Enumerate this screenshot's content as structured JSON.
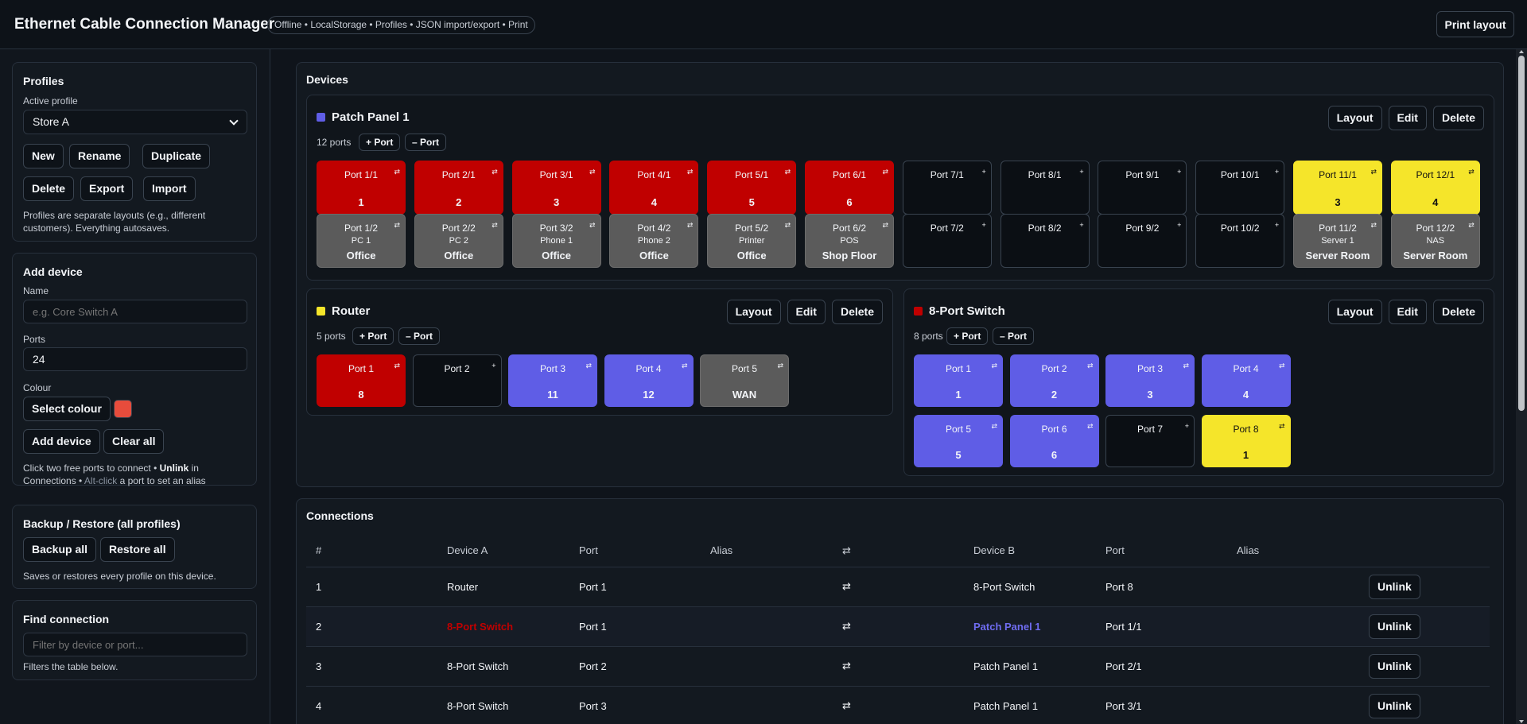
{
  "header": {
    "title": "Ethernet Cable Connection Manager",
    "pill": "Offline • LocalStorage • Profiles • JSON import/export • Print",
    "print_label": "Print layout"
  },
  "profiles": {
    "title": "Profiles",
    "active_label": "Active profile",
    "active_value": "Store A",
    "buttons": [
      "New",
      "Rename",
      "Duplicate",
      "Delete",
      "Export",
      "Import"
    ],
    "note": "Profiles are separate layouts (e.g., different customers). Everything autosaves."
  },
  "add_device": {
    "title": "Add device",
    "name_label": "Name",
    "name_placeholder": "e.g. Core Switch A",
    "ports_label": "Ports",
    "ports_value": "24",
    "colour_label": "Colour",
    "select_colour": "Select colour",
    "swatch_color": "#e74c3c",
    "add_label": "Add device",
    "clear_label": "Clear all",
    "note_1": "Click two free ports to connect • ",
    "note_unlink": "Unlink",
    "note_2": " in Connections • ",
    "note_altclick": "Alt-click",
    "note_3": " a port to set an alias"
  },
  "backup": {
    "title": "Backup / Restore (all profiles)",
    "backup_label": "Backup all",
    "restore_label": "Restore all",
    "note": "Saves or restores every profile on this device."
  },
  "find": {
    "title": "Find connection",
    "placeholder": "Filter by device or port...",
    "note": "Filters the table below."
  },
  "devices_section": {
    "title": "Devices",
    "layout_label": "Layout",
    "edit_label": "Edit",
    "delete_label": "Delete",
    "add_port": "+ Port",
    "remove_port": "– Port",
    "link_mark": "⇄",
    "free_mark": "+"
  },
  "devices": {
    "patch_panel": {
      "name": "Patch Panel 1",
      "color": "#5f5de6",
      "count": "12 ports",
      "top": [
        {
          "name": "Port 1/1",
          "value": "1"
        },
        {
          "name": "Port 2/1",
          "value": "2"
        },
        {
          "name": "Port 3/1",
          "value": "3"
        },
        {
          "name": "Port 4/1",
          "value": "4"
        },
        {
          "name": "Port 5/1",
          "value": "5"
        },
        {
          "name": "Port 6/1",
          "value": "6"
        },
        {
          "name": "Port 7/1",
          "value": ""
        },
        {
          "name": "Port 8/1",
          "value": ""
        },
        {
          "name": "Port 9/1",
          "value": ""
        },
        {
          "name": "Port 10/1",
          "value": ""
        },
        {
          "name": "Port 11/1",
          "value": "3"
        },
        {
          "name": "Port 12/1",
          "value": "4"
        }
      ],
      "bottom": [
        {
          "name": "Port 1/2",
          "alias": "PC 1",
          "value": "Office"
        },
        {
          "name": "Port 2/2",
          "alias": "PC 2",
          "value": "Office"
        },
        {
          "name": "Port 3/2",
          "alias": "Phone 1",
          "value": "Office"
        },
        {
          "name": "Port 4/2",
          "alias": "Phone 2",
          "value": "Office"
        },
        {
          "name": "Port 5/2",
          "alias": "Printer",
          "value": "Office"
        },
        {
          "name": "Port 6/2",
          "alias": "POS",
          "value": "Shop Floor"
        },
        {
          "name": "Port 7/2",
          "alias": "",
          "value": ""
        },
        {
          "name": "Port 8/2",
          "alias": "",
          "value": ""
        },
        {
          "name": "Port 9/2",
          "alias": "",
          "value": ""
        },
        {
          "name": "Port 10/2",
          "alias": "",
          "value": ""
        },
        {
          "name": "Port 11/2",
          "alias": "Server 1",
          "value": "Server Room"
        },
        {
          "name": "Port 12/2",
          "alias": "NAS",
          "value": "Server Room"
        }
      ]
    },
    "router": {
      "name": "Router",
      "color": "#f5e52a",
      "count": "5 ports",
      "ports": [
        {
          "name": "Port 1",
          "value": "8"
        },
        {
          "name": "Port 2",
          "value": ""
        },
        {
          "name": "Port 3",
          "value": "11"
        },
        {
          "name": "Port 4",
          "value": "12"
        },
        {
          "name": "Port 5",
          "value": "WAN"
        }
      ]
    },
    "switch": {
      "name": "8-Port Switch",
      "color": "#c00000",
      "count": "8 ports",
      "ports": [
        {
          "name": "Port 1",
          "value": "1"
        },
        {
          "name": "Port 2",
          "value": "2"
        },
        {
          "name": "Port 3",
          "value": "3"
        },
        {
          "name": "Port 4",
          "value": "4"
        },
        {
          "name": "Port 5",
          "value": "5"
        },
        {
          "name": "Port 6",
          "value": "6"
        },
        {
          "name": "Port 7",
          "value": ""
        },
        {
          "name": "Port 8",
          "value": "1"
        }
      ]
    }
  },
  "connections": {
    "title": "Connections",
    "headers": [
      "#",
      "Device A",
      "Port",
      "Alias",
      "⇄",
      "Device B",
      "Port",
      "Alias",
      ""
    ],
    "unlink_label": "Unlink",
    "rows": [
      {
        "n": "1",
        "a": "Router",
        "pa": "Port 1",
        "aa": "",
        "sym": "⇄",
        "b": "8-Port Switch",
        "pb": "Port 8",
        "ab": ""
      },
      {
        "n": "2",
        "a": "8-Port Switch",
        "pa": "Port 1",
        "aa": "",
        "sym": "⇄",
        "b": "Patch Panel 1",
        "pb": "Port 1/1",
        "ab": ""
      },
      {
        "n": "3",
        "a": "8-Port Switch",
        "pa": "Port 2",
        "aa": "",
        "sym": "⇄",
        "b": "Patch Panel 1",
        "pb": "Port 2/1",
        "ab": ""
      },
      {
        "n": "4",
        "a": "8-Port Switch",
        "pa": "Port 3",
        "aa": "",
        "sym": "⇄",
        "b": "Patch Panel 1",
        "pb": "Port 3/1",
        "ab": ""
      }
    ]
  }
}
